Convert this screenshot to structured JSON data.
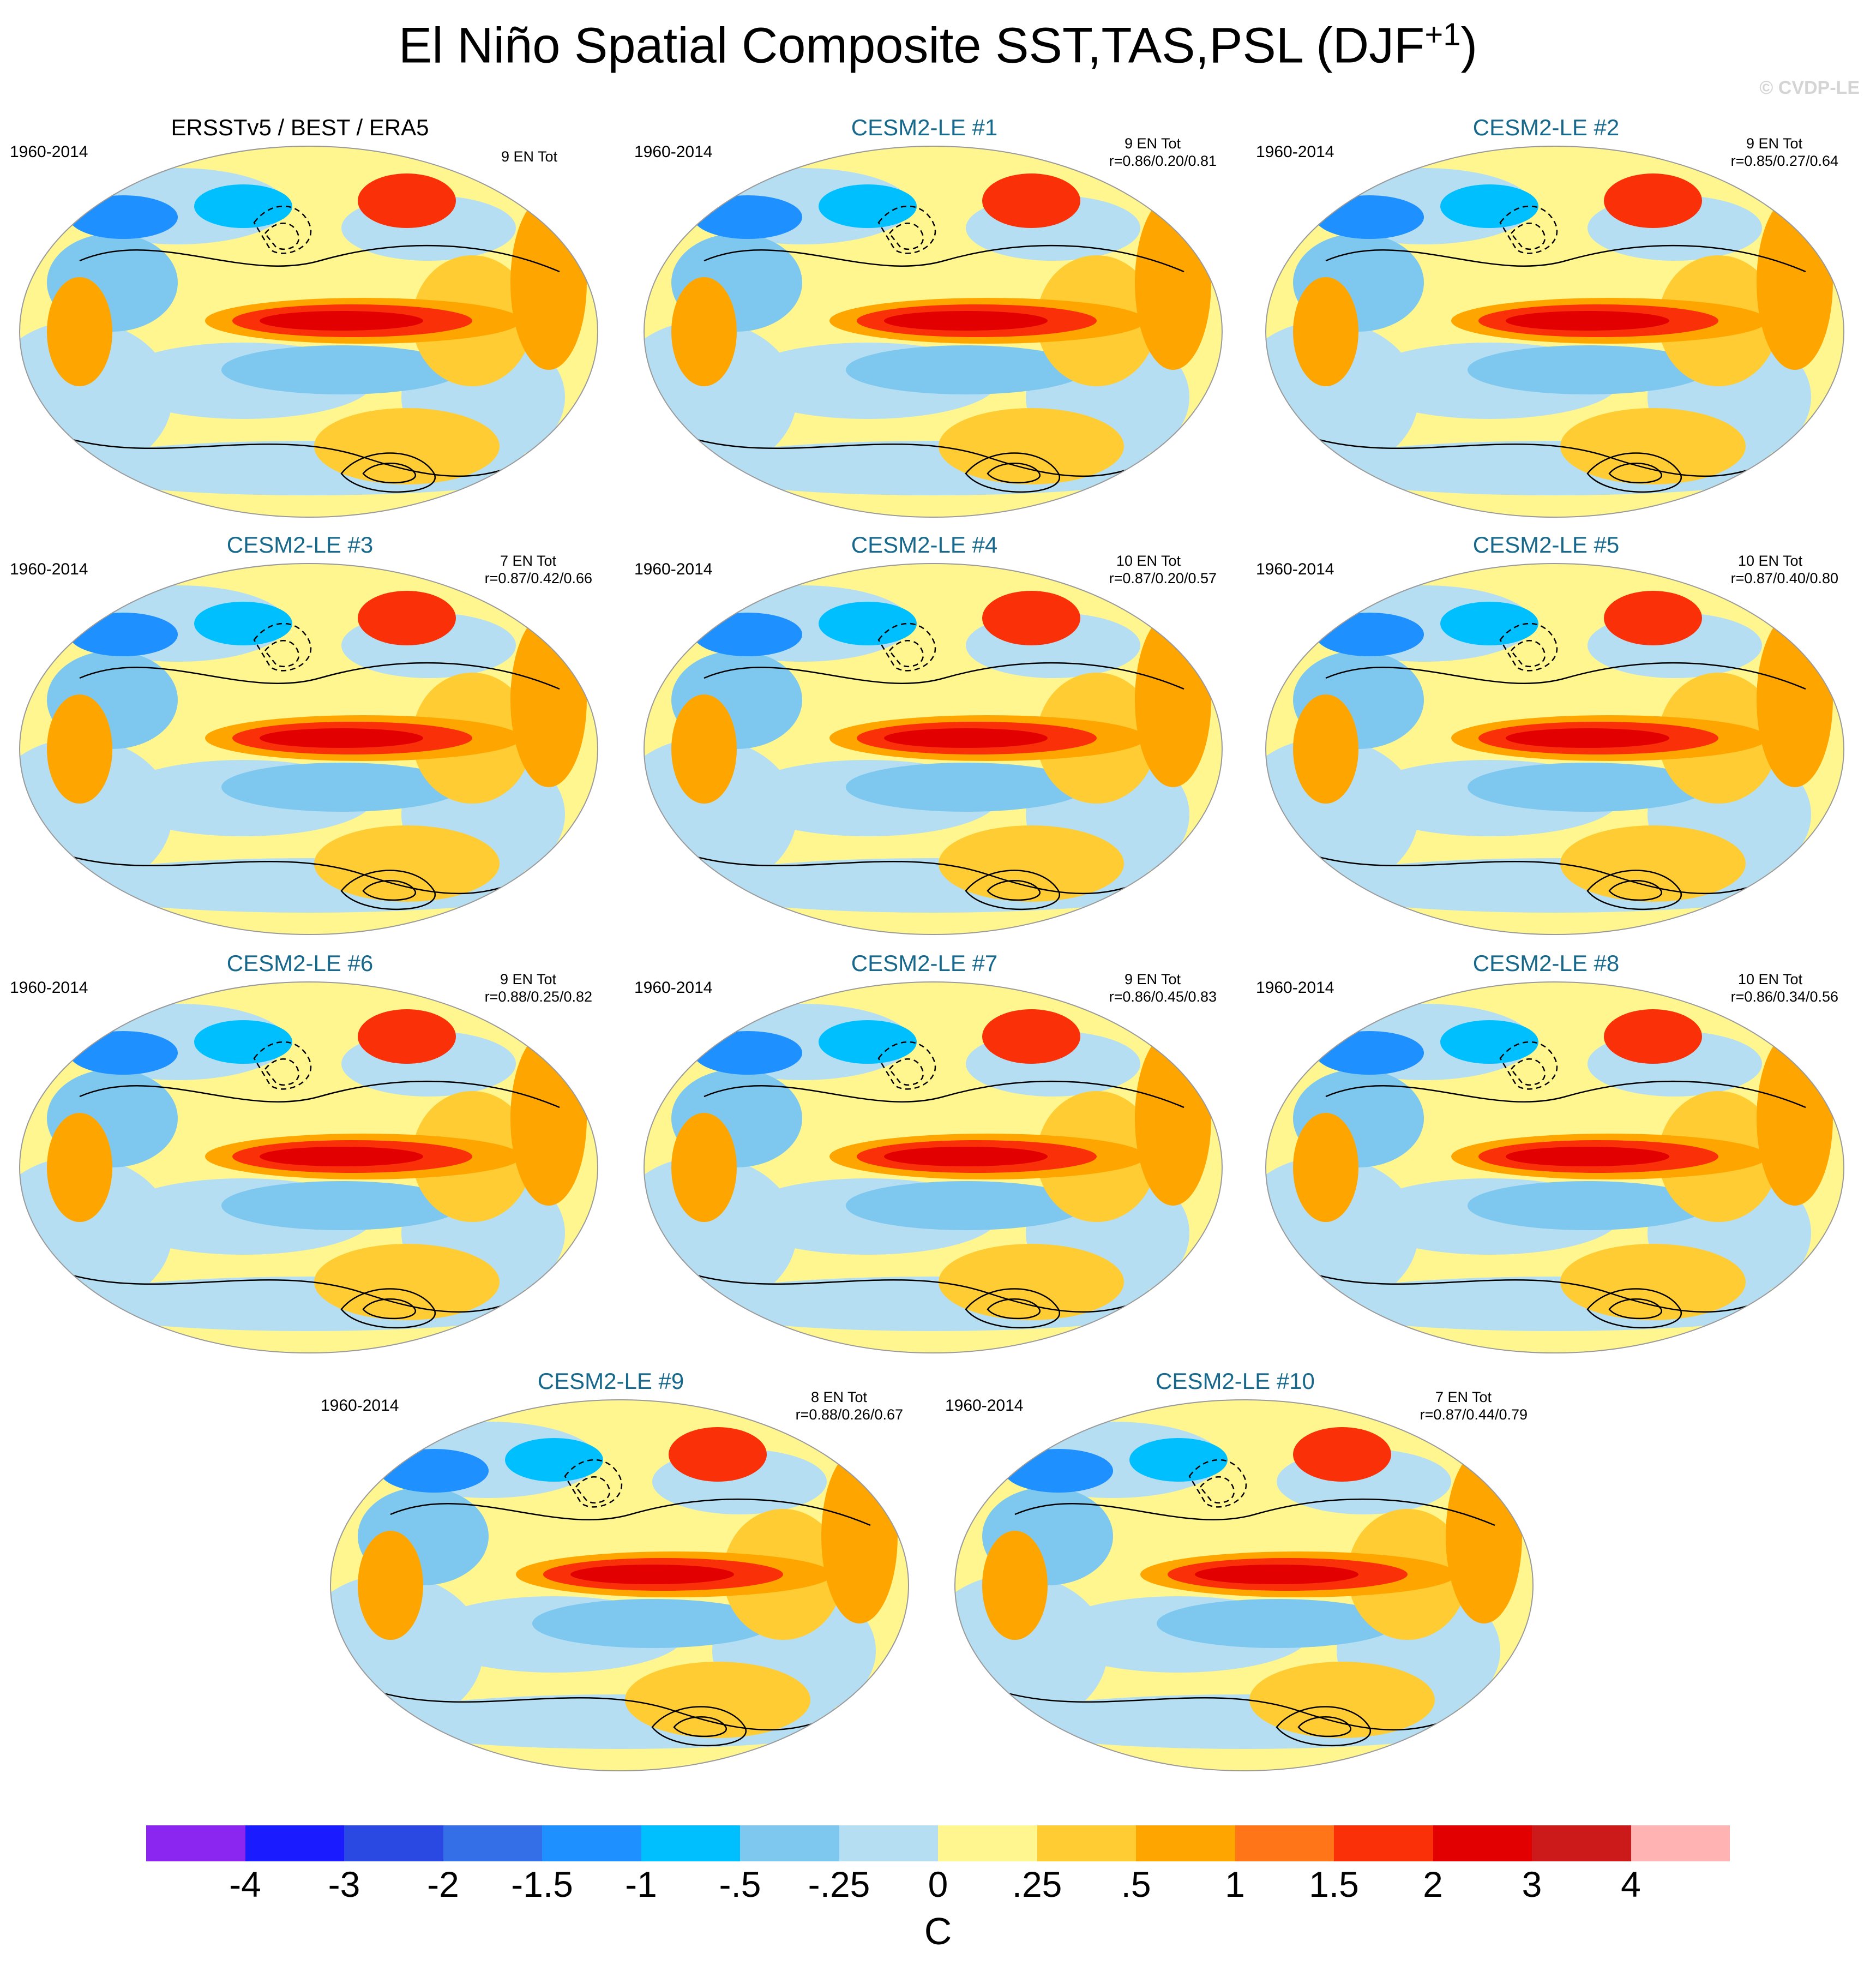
{
  "title": "El Niño Spatial Composite SST,TAS,PSL (DJF",
  "title_sup": "+1",
  "title_close": ")",
  "copyright": "© CVDP-LE",
  "panels": [
    {
      "title": "ERSSTv5 / BEST / ERA5",
      "period": "1960-2014",
      "en_count": "9 EN Tot",
      "corr": "",
      "obs": true
    },
    {
      "title": "CESM2-LE #1",
      "period": "1960-2014",
      "en_count": "9 EN Tot",
      "corr": "r=0.86/0.20/0.81",
      "obs": false
    },
    {
      "title": "CESM2-LE #2",
      "period": "1960-2014",
      "en_count": "9 EN Tot",
      "corr": "r=0.85/0.27/0.64",
      "obs": false
    },
    {
      "title": "CESM2-LE #3",
      "period": "1960-2014",
      "en_count": "7 EN Tot",
      "corr": "r=0.87/0.42/0.66",
      "obs": false
    },
    {
      "title": "CESM2-LE #4",
      "period": "1960-2014",
      "en_count": "10 EN Tot",
      "corr": "r=0.87/0.20/0.57",
      "obs": false
    },
    {
      "title": "CESM2-LE #5",
      "period": "1960-2014",
      "en_count": "10 EN Tot",
      "corr": "r=0.87/0.40/0.80",
      "obs": false
    },
    {
      "title": "CESM2-LE #6",
      "period": "1960-2014",
      "en_count": "9 EN Tot",
      "corr": "r=0.88/0.25/0.82",
      "obs": false
    },
    {
      "title": "CESM2-LE #7",
      "period": "1960-2014",
      "en_count": "9 EN Tot",
      "corr": "r=0.86/0.45/0.83",
      "obs": false
    },
    {
      "title": "CESM2-LE #8",
      "period": "1960-2014",
      "en_count": "10 EN Tot",
      "corr": "r=0.86/0.34/0.56",
      "obs": false
    },
    {
      "title": "CESM2-LE #9",
      "period": "1960-2014",
      "en_count": "8 EN Tot",
      "corr": "r=0.88/0.26/0.67",
      "obs": false
    },
    {
      "title": "CESM2-LE #10",
      "period": "1960-2014",
      "en_count": "7 EN Tot",
      "corr": "r=0.87/0.44/0.79",
      "obs": false
    }
  ],
  "colorbar": {
    "colors": [
      "#8b26f0",
      "#1b1bff",
      "#2a49e3",
      "#356fe8",
      "#1e90ff",
      "#00bfff",
      "#7ec8f0",
      "#b5def2",
      "#fff68f",
      "#ffcc33",
      "#ffa500",
      "#ff7518",
      "#fa3008",
      "#e30000",
      "#cc1a1a",
      "#ffb3b3"
    ],
    "labels": [
      "-4",
      "-3",
      "-2",
      "-1.5",
      "-1",
      "-.5",
      "-.25",
      "0",
      ".25",
      ".5",
      "1",
      "1.5",
      "2",
      "3",
      "4"
    ],
    "unit": "C"
  }
}
